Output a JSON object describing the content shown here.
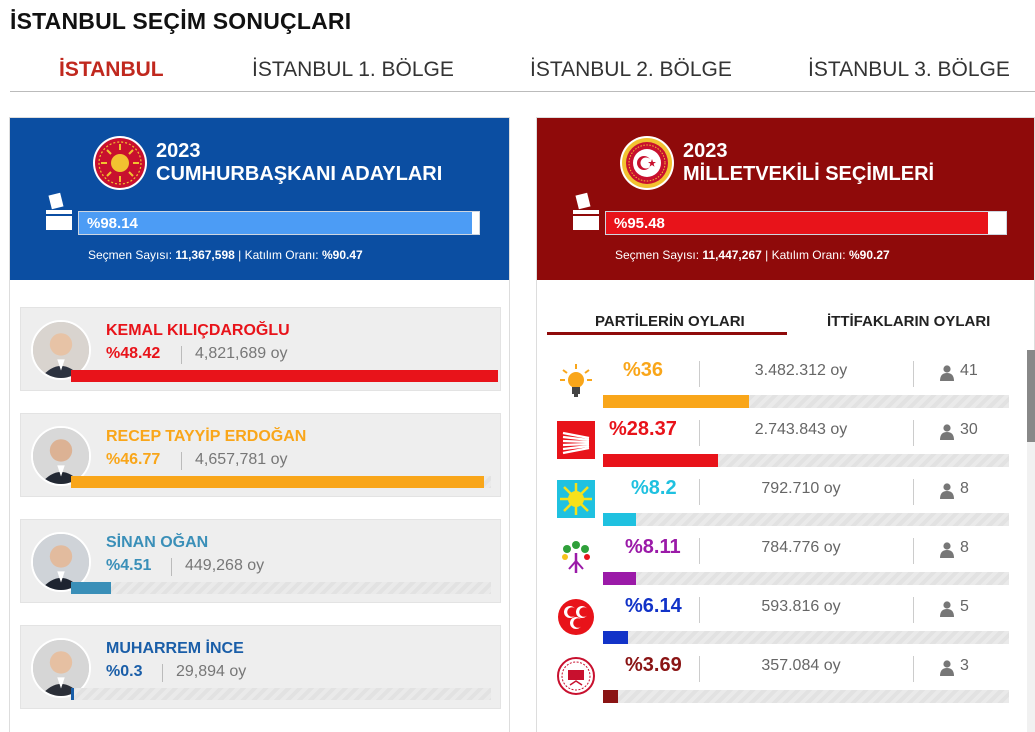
{
  "page_title": "İSTANBUL SEÇİM SONUÇLARI",
  "tabs": [
    {
      "label": "İSTANBUL"
    },
    {
      "label": "İSTANBUL 1. BÖLGE"
    },
    {
      "label": "İSTANBUL 2. BÖLGE"
    },
    {
      "label": "İSTANBUL 3. BÖLGE"
    }
  ],
  "presidential": {
    "year": "2023",
    "title": "CUMHURBAŞKANI ADAYLARI",
    "count_label": "%98.14",
    "count_fraction": 0.9814,
    "stats_label": "Seçmen Sayısı:",
    "voters": "11,367,598",
    "turnout_label": "Katılım Oranı:",
    "turnout": "%90.47",
    "bar_color": "#4c9cf5",
    "candidates": [
      {
        "name": "KEMAL KILIÇDAROĞLU",
        "pct": "%48.42",
        "share": 0.4842,
        "votes": "4,821,689 oy",
        "color": "#e8131a"
      },
      {
        "name": "RECEP TAYYİP ERDOĞAN",
        "pct": "%46.77",
        "share": 0.4677,
        "votes": "4,657,781 oy",
        "color": "#f9a61a"
      },
      {
        "name": "SİNAN OĞAN",
        "pct": "%4.51",
        "share": 0.0451,
        "votes": "449,268 oy",
        "color": "#3a8fb8"
      },
      {
        "name": "MUHARREM İNCE",
        "pct": "%0.3",
        "share": 0.003,
        "votes": "29,894 oy",
        "color": "#1a5ea8"
      }
    ]
  },
  "parliament": {
    "year": "2023",
    "title": "MİLLETVEKİLİ SEÇİMLERİ",
    "count_label": "%95.48",
    "count_fraction": 0.9548,
    "stats_label": "Seçmen Sayısı:",
    "voters": "11,447,267",
    "turnout_label": "Katılım Oranı:",
    "turnout": "%90.27",
    "bar_color": "#e8131a",
    "subtabs": [
      {
        "label": "PARTİLERİN OYLARI"
      },
      {
        "label": "İTTİFAKLARIN OYLARI"
      }
    ],
    "parties": [
      {
        "logo": "akp-lightbulb-icon",
        "pct": "%36",
        "share": 0.36,
        "votes": "3.482.312 oy",
        "seats": "41",
        "color": "#f9a61a"
      },
      {
        "logo": "chp-six-arrows-icon",
        "pct": "%28.37",
        "share": 0.2837,
        "votes": "2.743.843 oy",
        "seats": "30",
        "color": "#e8131a"
      },
      {
        "logo": "iyi-sun-icon",
        "pct": "%8.2",
        "share": 0.082,
        "votes": "792.710 oy",
        "seats": "8",
        "color": "#1fc1e0"
      },
      {
        "logo": "yesil-sol-tree-icon",
        "pct": "%8.11",
        "share": 0.0811,
        "votes": "784.776 oy",
        "seats": "8",
        "color": "#9b1aa8"
      },
      {
        "logo": "mhp-crescents-icon",
        "pct": "%6.14",
        "share": 0.0614,
        "votes": "593.816 oy",
        "seats": "5",
        "color": "#1233c8"
      },
      {
        "logo": "tip-seal-icon",
        "pct": "%3.69",
        "share": 0.0369,
        "votes": "357.084 oy",
        "seats": "3",
        "color": "#8a1414"
      }
    ]
  }
}
